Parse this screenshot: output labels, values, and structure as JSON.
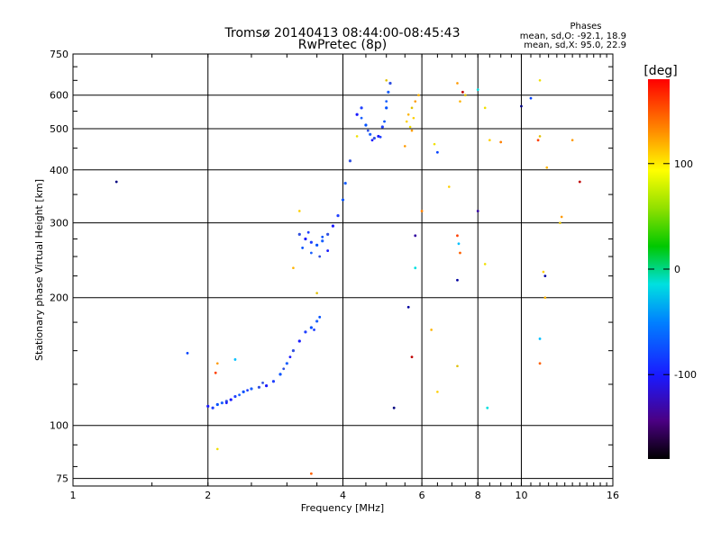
{
  "chart_data": {
    "type": "scatter",
    "title": "Tromsø 20140413 08:44:00-08:45:43",
    "subtitle": "RwPretec (8p)",
    "xlabel": "Frequency [MHz]",
    "ylabel": "Stationary phase Virtual Height [km]",
    "x_scale": "log2",
    "y_scale": "log",
    "xlim": [
      1,
      16
    ],
    "ylim": [
      72,
      750
    ],
    "x_ticks": [
      1,
      2,
      4,
      6,
      8,
      10,
      16
    ],
    "y_ticks": [
      75,
      100,
      200,
      300,
      400,
      500,
      600,
      750
    ],
    "grid": true,
    "stats": {
      "heading": "Phases",
      "line1": "mean, sd,O: -92.1, 18.9",
      "line2": "mean, sd,X:  95.0, 22.9"
    },
    "colorbar": {
      "label": "[deg]",
      "range": [
        -180,
        180
      ],
      "ticks": [
        -100,
        0,
        100
      ],
      "tick_labels": [
        "-100",
        "0",
        "100"
      ]
    },
    "o_trace": [
      [
        2.0,
        111
      ],
      [
        2.05,
        110
      ],
      [
        2.1,
        112
      ],
      [
        2.15,
        113
      ],
      [
        2.2,
        114
      ],
      [
        2.25,
        115
      ],
      [
        2.3,
        117
      ],
      [
        2.4,
        120
      ],
      [
        2.5,
        122
      ],
      [
        2.6,
        123
      ],
      [
        2.7,
        124
      ],
      [
        2.8,
        127
      ],
      [
        2.9,
        132
      ],
      [
        3.0,
        140
      ],
      [
        3.1,
        150
      ],
      [
        3.2,
        158
      ],
      [
        3.3,
        166
      ],
      [
        3.4,
        170
      ],
      [
        3.5,
        176
      ],
      [
        3.2,
        282
      ],
      [
        3.3,
        275
      ],
      [
        3.4,
        270
      ],
      [
        3.5,
        266
      ],
      [
        3.6,
        272
      ],
      [
        3.7,
        282
      ],
      [
        3.8,
        295
      ],
      [
        3.9,
        312
      ],
      [
        4.0,
        340
      ],
      [
        4.05,
        372
      ],
      [
        4.15,
        420
      ],
      [
        4.3,
        540
      ],
      [
        4.4,
        560
      ],
      [
        4.5,
        510
      ],
      [
        4.6,
        485
      ],
      [
        4.7,
        475
      ],
      [
        4.8,
        480
      ],
      [
        4.9,
        505
      ],
      [
        5.0,
        560
      ],
      [
        5.05,
        610
      ],
      [
        5.1,
        640
      ]
    ],
    "o_cloud": [
      [
        3.25,
        262
      ],
      [
        3.4,
        255
      ],
      [
        3.55,
        250
      ],
      [
        3.7,
        258
      ],
      [
        3.35,
        285
      ],
      [
        3.6,
        278
      ],
      [
        4.4,
        530
      ],
      [
        4.55,
        495
      ],
      [
        4.65,
        470
      ],
      [
        4.85,
        478
      ],
      [
        4.95,
        520
      ],
      [
        5.0,
        580
      ],
      [
        2.95,
        136
      ],
      [
        3.05,
        145
      ],
      [
        3.45,
        168
      ],
      [
        3.55,
        180
      ],
      [
        2.35,
        118
      ],
      [
        2.65,
        126
      ],
      [
        2.2,
        113
      ],
      [
        2.45,
        121
      ]
    ],
    "x_points": [
      [
        5.55,
        520
      ],
      [
        5.6,
        540
      ],
      [
        5.7,
        560
      ],
      [
        5.8,
        580
      ],
      [
        5.65,
        505
      ],
      [
        5.75,
        530
      ],
      [
        5.9,
        600
      ],
      [
        5.0,
        650
      ],
      [
        5.5,
        455
      ],
      [
        6.4,
        460
      ],
      [
        6.9,
        365
      ],
      [
        7.3,
        580
      ],
      [
        7.5,
        600
      ],
      [
        7.2,
        640
      ],
      [
        8.3,
        560
      ],
      [
        8.5,
        470
      ],
      [
        11.4,
        405
      ],
      [
        12.2,
        300
      ],
      [
        13.0,
        470
      ],
      [
        11.0,
        650
      ],
      [
        11.2,
        230
      ],
      [
        11.3,
        200
      ],
      [
        11.0,
        480
      ],
      [
        12.3,
        310
      ],
      [
        8.3,
        240
      ],
      [
        6.5,
        120
      ],
      [
        6.3,
        168
      ],
      [
        7.2,
        138
      ],
      [
        2.1,
        140
      ],
      [
        2.1,
        88
      ],
      [
        3.2,
        320
      ],
      [
        3.1,
        235
      ],
      [
        3.5,
        205
      ],
      [
        5.7,
        495
      ],
      [
        4.3,
        480
      ]
    ],
    "other_points": [
      [
        1.25,
        375
      ],
      [
        1.8,
        148
      ],
      [
        2.08,
        133
      ],
      [
        2.3,
        143
      ],
      [
        3.4,
        77
      ],
      [
        5.6,
        190
      ],
      [
        5.7,
        145
      ],
      [
        5.8,
        235
      ],
      [
        5.8,
        280
      ],
      [
        6.0,
        320
      ],
      [
        5.2,
        110
      ],
      [
        6.5,
        440
      ],
      [
        7.2,
        280
      ],
      [
        7.25,
        268
      ],
      [
        7.3,
        255
      ],
      [
        7.2,
        220
      ],
      [
        7.4,
        610
      ],
      [
        8.0,
        618
      ],
      [
        8.0,
        320
      ],
      [
        9.0,
        465
      ],
      [
        10.0,
        565
      ],
      [
        10.5,
        590
      ],
      [
        10.9,
        470
      ],
      [
        11.0,
        160
      ],
      [
        11.0,
        140
      ],
      [
        11.3,
        225
      ],
      [
        13.5,
        375
      ],
      [
        8.4,
        110
      ]
    ]
  }
}
